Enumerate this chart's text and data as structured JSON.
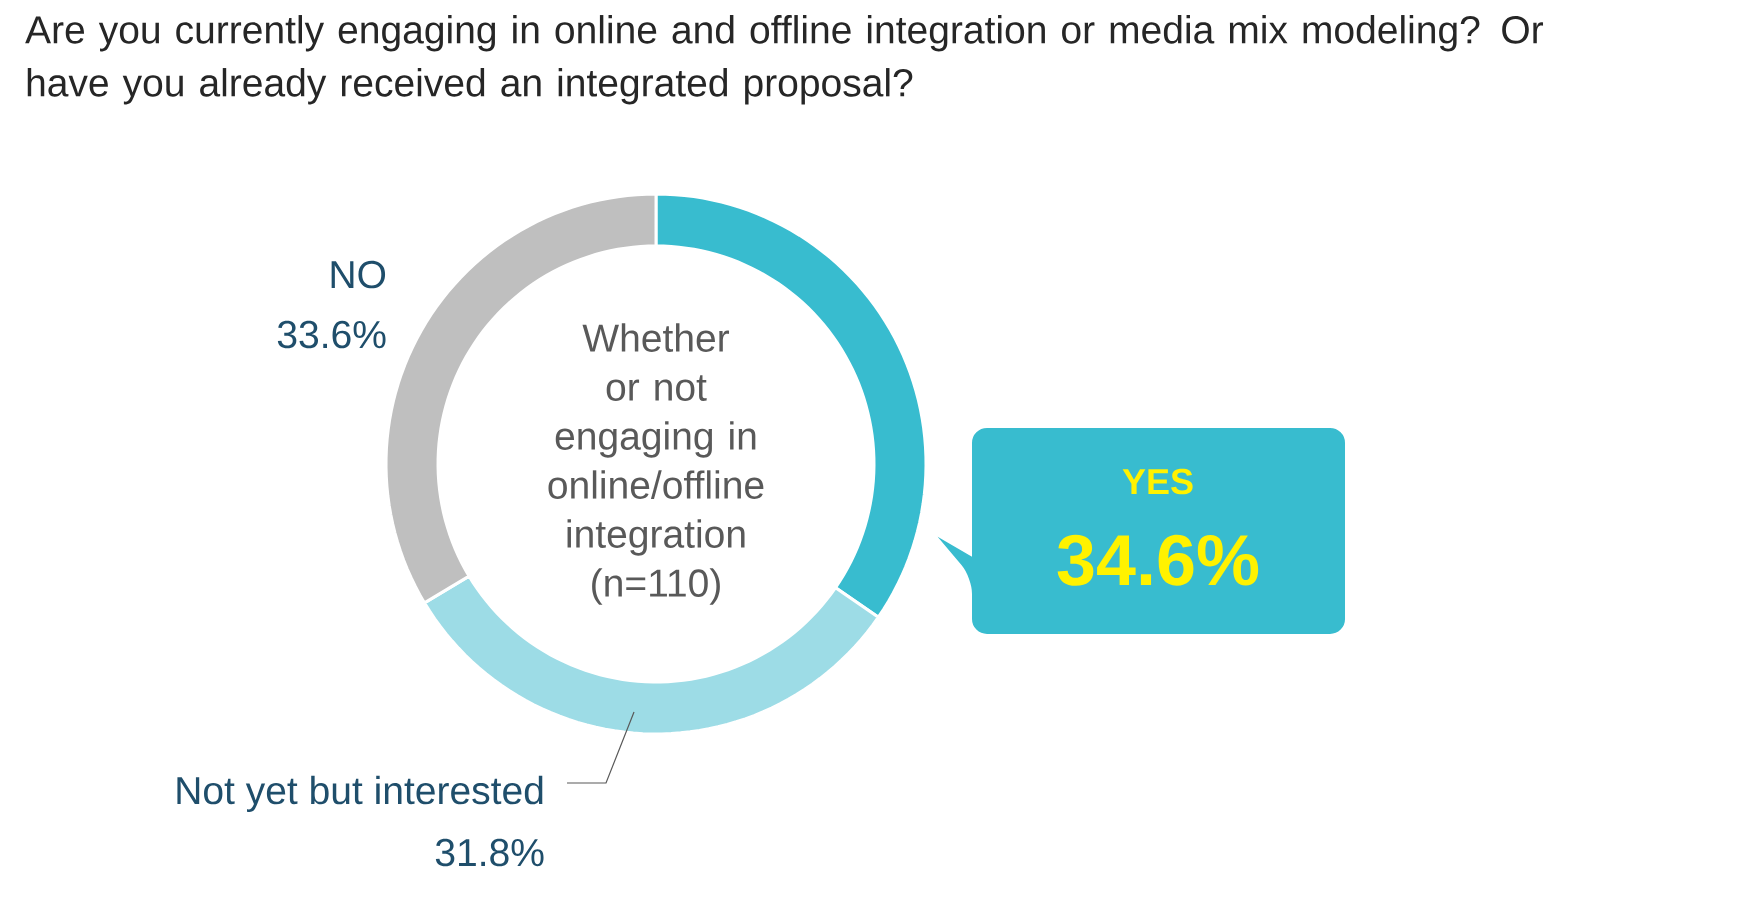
{
  "chart_data": {
    "type": "donut",
    "title": "Are you currently engaging in online and offline integration or media mix modeling? Or have you already received an integrated proposal?",
    "categories": [
      "YES",
      "NO",
      "Not yet but interested"
    ],
    "values": [
      34.6,
      33.6,
      31.8
    ],
    "colors": [
      "#38bccf",
      "#bfbfbf",
      "#9ddce6"
    ],
    "value_labels": [
      "34.6%",
      "33.6%",
      "31.8%"
    ],
    "annotations": [
      "Whether or not engaging in online/offline integration (n=110)"
    ]
  }
}
